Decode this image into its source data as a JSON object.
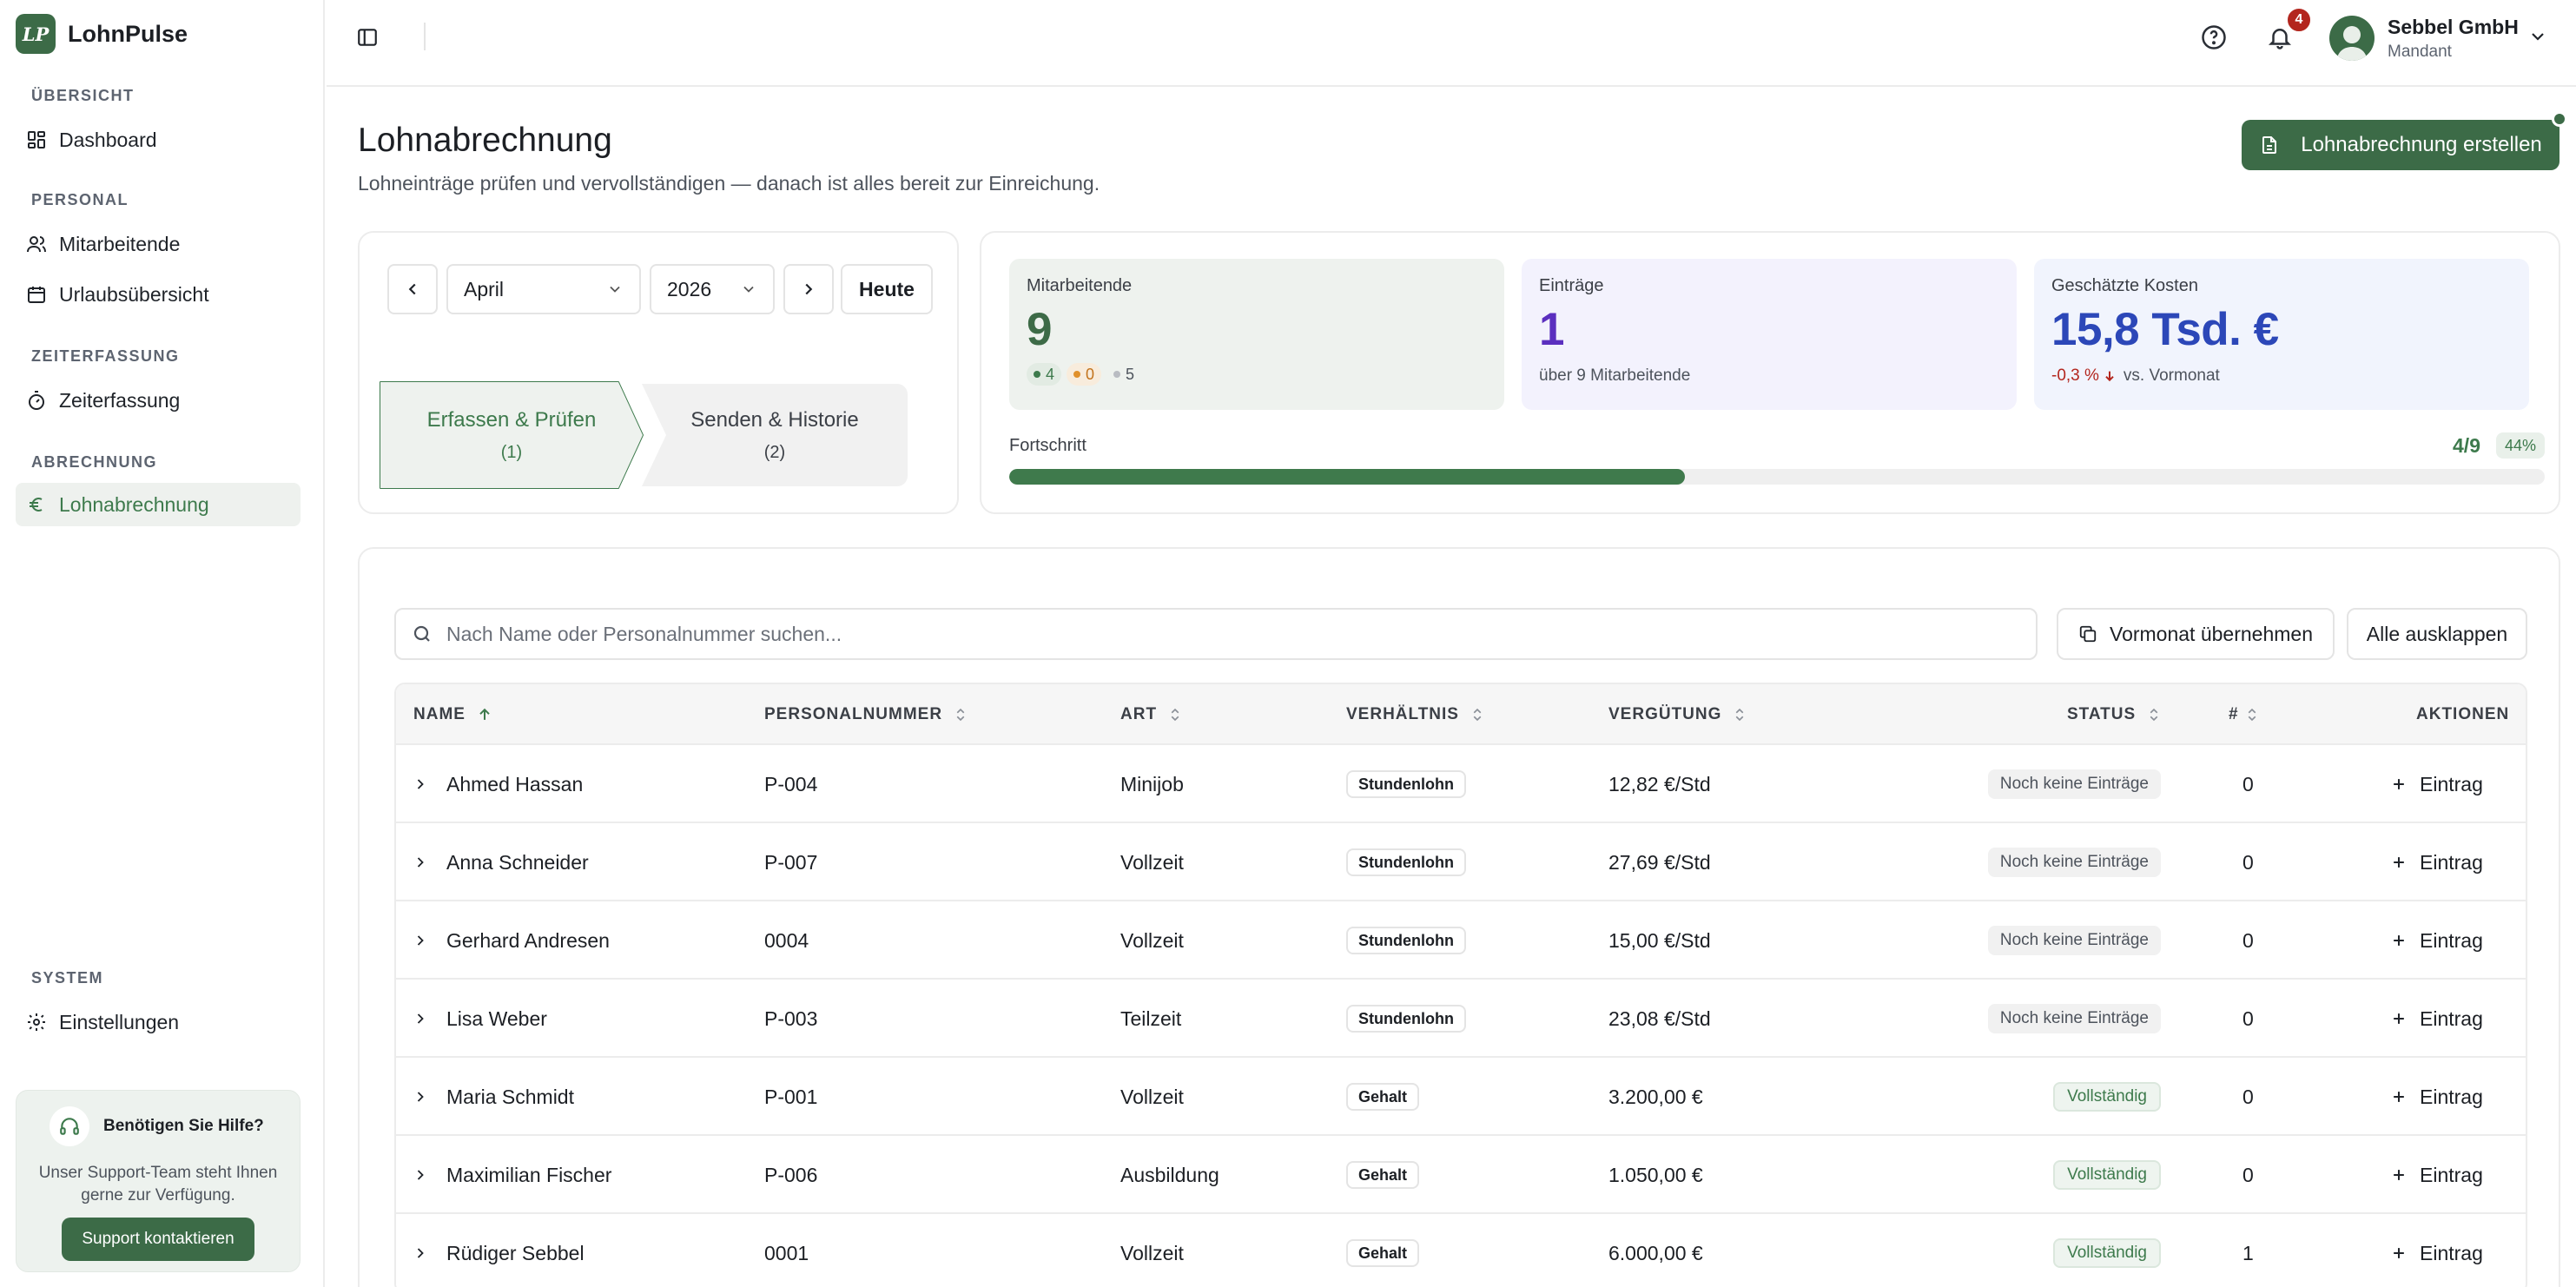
{
  "app": {
    "logo_text": "LP",
    "name": "LohnPulse"
  },
  "sidebar": {
    "sections": [
      {
        "title": "ÜBERSICHT",
        "items": [
          {
            "label": "Dashboard",
            "icon": "grid-icon"
          }
        ]
      },
      {
        "title": "PERSONAL",
        "items": [
          {
            "label": "Mitarbeitende",
            "icon": "users-icon"
          },
          {
            "label": "Urlaubsübersicht",
            "icon": "calendar-icon"
          }
        ]
      },
      {
        "title": "ZEITERFASSUNG",
        "items": [
          {
            "label": "Zeiterfassung",
            "icon": "timer-icon"
          }
        ]
      },
      {
        "title": "ABRECHNUNG",
        "items": [
          {
            "label": "Lohnabrechnung",
            "icon": "euro-icon",
            "active": true
          }
        ]
      },
      {
        "title": "SYSTEM",
        "items": [
          {
            "label": "Einstellungen",
            "icon": "gear-icon"
          }
        ]
      }
    ],
    "help": {
      "title": "Benötigen Sie Hilfe?",
      "text": "Unser Support-Team steht Ihnen gerne zur Verfügung.",
      "button": "Support kontaktieren"
    }
  },
  "topbar": {
    "notification_count": "4",
    "company": "Sebbel GmbH",
    "role": "Mandant"
  },
  "page": {
    "title": "Lohnabrechnung",
    "subtitle": "Lohneinträge prüfen und vervollständigen — danach ist alles bereit zur Einreichung.",
    "create_button": "Lohnabrechnung erstellen"
  },
  "period": {
    "month": "April",
    "year": "2026",
    "today_button": "Heute",
    "steps": [
      {
        "label": "Erfassen & Prüfen",
        "count": "(1)",
        "active": true
      },
      {
        "label": "Senden & Historie",
        "count": "(2)"
      }
    ]
  },
  "stats": {
    "employees": {
      "label": "Mitarbeitende",
      "value": "9",
      "pills": [
        {
          "value": "4",
          "color": "#3d7a4c"
        },
        {
          "value": "0",
          "color": "#e0902b"
        },
        {
          "value": "5",
          "color": "#b9bcc2"
        }
      ]
    },
    "entries": {
      "label": "Einträge",
      "value": "1",
      "sub": "über 9 Mitarbeitende"
    },
    "costs": {
      "label": "Geschätzte Kosten",
      "value": "15,8 Tsd. €",
      "delta": "-0,3 %",
      "delta_suffix": "vs. Vormonat"
    },
    "progress": {
      "label": "Fortschritt",
      "count": "4/9",
      "percent_label": "44%",
      "fraction": 0.44
    }
  },
  "colors": {
    "accent": "#3c6b47",
    "purple": "#5b2fbf",
    "blue": "#2c47b8",
    "danger": "#b3261e"
  },
  "table": {
    "search_placeholder": "Nach Name oder Personalnummer suchen...",
    "copy_button": "Vormonat übernehmen",
    "expand_button": "Alle ausklappen",
    "columns": {
      "name": "NAME",
      "personal": "PERSONALNUMMER",
      "art": "ART",
      "verhaeltnis": "VERHÄLTNIS",
      "verguetung": "VERGÜTUNG",
      "status": "STATUS",
      "count": "#",
      "aktionen": "AKTIONEN"
    },
    "action_label": "Eintrag",
    "rows": [
      {
        "name": "Ahmed Hassan",
        "personal": "P-004",
        "art": "Minijob",
        "verhaeltnis": "Stundenlohn",
        "verguetung": "12,82 €/Std",
        "status": "Noch keine Einträge",
        "status_type": "none",
        "count": "0"
      },
      {
        "name": "Anna Schneider",
        "personal": "P-007",
        "art": "Vollzeit",
        "verhaeltnis": "Stundenlohn",
        "verguetung": "27,69 €/Std",
        "status": "Noch keine Einträge",
        "status_type": "none",
        "count": "0"
      },
      {
        "name": "Gerhard Andresen",
        "personal": "0004",
        "art": "Vollzeit",
        "verhaeltnis": "Stundenlohn",
        "verguetung": "15,00 €/Std",
        "status": "Noch keine Einträge",
        "status_type": "none",
        "count": "0"
      },
      {
        "name": "Lisa Weber",
        "personal": "P-003",
        "art": "Teilzeit",
        "verhaeltnis": "Stundenlohn",
        "verguetung": "23,08 €/Std",
        "status": "Noch keine Einträge",
        "status_type": "none",
        "count": "0"
      },
      {
        "name": "Maria Schmidt",
        "personal": "P-001",
        "art": "Vollzeit",
        "verhaeltnis": "Gehalt",
        "verguetung": "3.200,00 €",
        "status": "Vollständig",
        "status_type": "full",
        "count": "0"
      },
      {
        "name": "Maximilian Fischer",
        "personal": "P-006",
        "art": "Ausbildung",
        "verhaeltnis": "Gehalt",
        "verguetung": "1.050,00 €",
        "status": "Vollständig",
        "status_type": "full",
        "count": "0"
      },
      {
        "name": "Rüdiger Sebbel",
        "personal": "0001",
        "art": "Vollzeit",
        "verhaeltnis": "Gehalt",
        "verguetung": "6.000,00 €",
        "status": "Vollständig",
        "status_type": "full",
        "count": "1"
      }
    ]
  }
}
